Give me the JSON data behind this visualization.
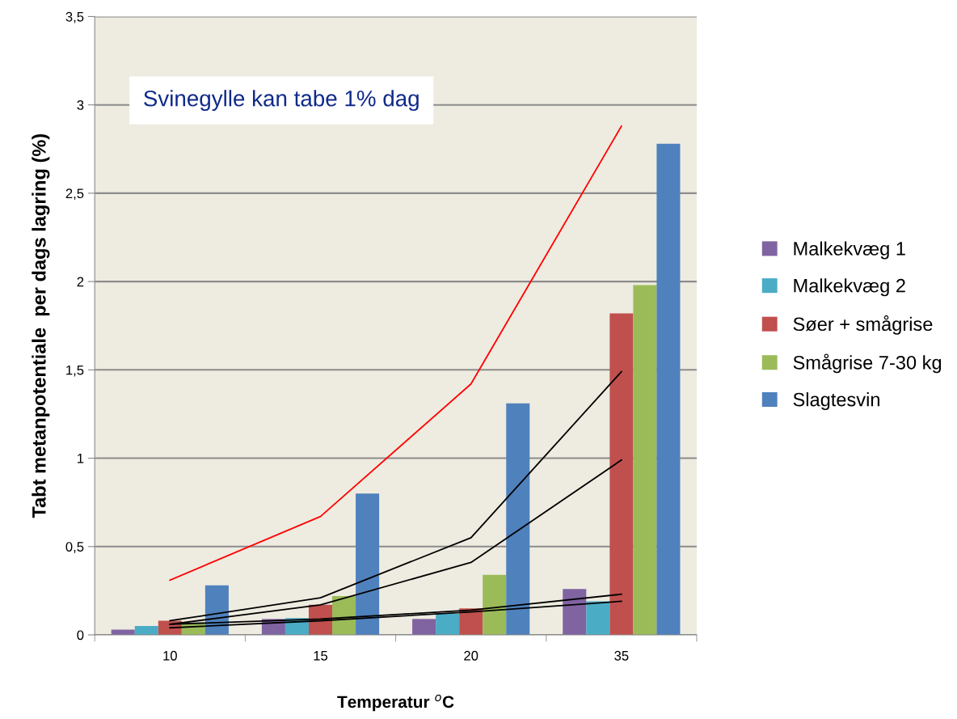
{
  "chart_data": {
    "type": "bar",
    "xlabel": "Temperatur $^{o}$C",
    "ylabel": "Tabt metanpotentiale  per dags lagring (%)",
    "categories": [
      "10",
      "15",
      "20",
      "35"
    ],
    "series": [
      {
        "name": "Malkekvæg 1",
        "color": "#8064a2",
        "values": [
          0.03,
          0.09,
          0.09,
          0.26
        ]
      },
      {
        "name": "Malkekvæg 2",
        "color": "#4bacc6",
        "values": [
          0.05,
          0.095,
          0.12,
          0.19
        ]
      },
      {
        "name": "Søer + smågrise",
        "color": "#c0504d",
        "values": [
          0.08,
          0.17,
          0.15,
          1.82
        ]
      },
      {
        "name": "Smågrise 7-30 kg",
        "color": "#9bbb59",
        "values": [
          0.07,
          0.22,
          0.34,
          1.98
        ]
      },
      {
        "name": "Slagtesvin",
        "color": "#4f81bd",
        "values": [
          0.28,
          0.8,
          1.31,
          2.78
        ]
      },
      {
        "type": "line",
        "color": "#ff0000",
        "values": [
          0.31,
          0.67,
          1.42,
          2.88
        ]
      },
      {
        "type": "line",
        "color": "#000000",
        "values": [
          0.08,
          0.21,
          0.55,
          1.49
        ]
      },
      {
        "type": "line",
        "color": "#000000",
        "values": [
          0.06,
          0.17,
          0.41,
          0.99
        ]
      },
      {
        "type": "line",
        "color": "#000000",
        "values": [
          0.06,
          0.09,
          0.14,
          0.23
        ]
      },
      {
        "type": "line",
        "color": "#000000",
        "values": [
          0.04,
          0.08,
          0.13,
          0.19
        ]
      }
    ],
    "ylim": [
      0,
      3.5
    ],
    "yticks": [
      0,
      {
        "value": 0.5,
        "label": "0,5"
      },
      1,
      {
        "value": 1.5,
        "label": "1,5"
      },
      2,
      {
        "value": 2.5,
        "label": "2,5"
      },
      3,
      {
        "value": 3.5,
        "label": "3,5"
      }
    ],
    "grid": "y",
    "legend": "right",
    "annotations": [
      "Svinegylle kan tabe 1% dag"
    ]
  }
}
